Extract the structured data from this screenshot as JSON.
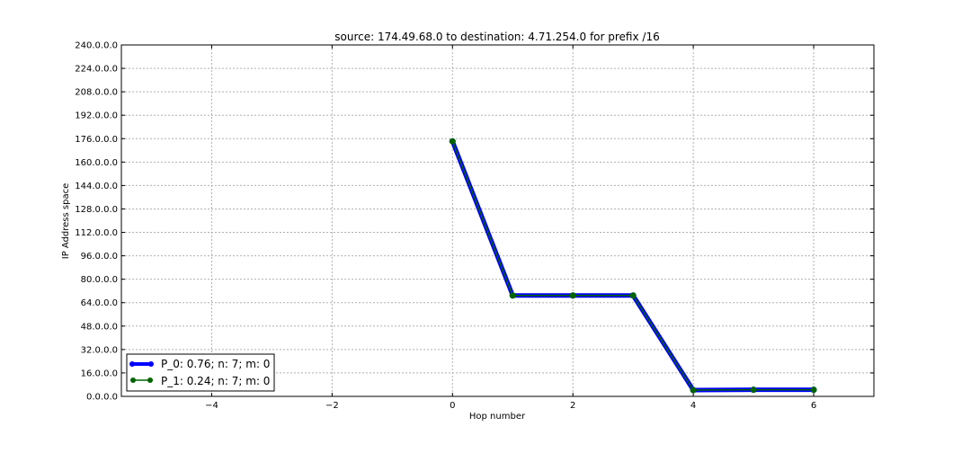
{
  "chart_data": {
    "type": "line",
    "title": "source: 174.49.68.0 to destination: 4.71.254.0 for prefix /16",
    "xlabel": "Hop number",
    "ylabel": "IP Address space",
    "xlim": [
      -5.5,
      7
    ],
    "ylim": [
      0,
      240
    ],
    "xticks": [
      -4,
      -2,
      0,
      2,
      4,
      6
    ],
    "xtick_labels": [
      "−4",
      "−2",
      "0",
      "2",
      "4",
      "6"
    ],
    "yticks": [
      0,
      16,
      32,
      48,
      64,
      80,
      96,
      112,
      128,
      144,
      160,
      176,
      192,
      208,
      224,
      240
    ],
    "ytick_labels": [
      "0.0.0.0",
      "16.0.0.0",
      "32.0.0.0",
      "48.0.0.0",
      "64.0.0.0",
      "80.0.0.0",
      "96.0.0.0",
      "112.0.0.0",
      "128.0.0.0",
      "144.0.0.0",
      "160.0.0.0",
      "176.0.0.0",
      "192.0.0.0",
      "208.0.0.0",
      "224.0.0.0",
      "240.0.0.0"
    ],
    "grid": true,
    "legend_position": "lower-left",
    "series": [
      {
        "name": "P_0: 0.76; n: 7; m: 0",
        "color": "#0000ff",
        "x": [
          0,
          1,
          2,
          3,
          4,
          5,
          6
        ],
        "y": [
          174.2,
          68.9,
          68.9,
          68.9,
          4.3,
          4.5,
          4.5
        ]
      },
      {
        "name": "P_1: 0.24; n: 7; m: 0",
        "color": "#006400",
        "x": [
          0,
          1,
          2,
          3,
          4,
          5,
          6
        ],
        "y": [
          174.2,
          68.9,
          68.9,
          68.9,
          4.3,
          4.5,
          4.5
        ]
      }
    ]
  }
}
